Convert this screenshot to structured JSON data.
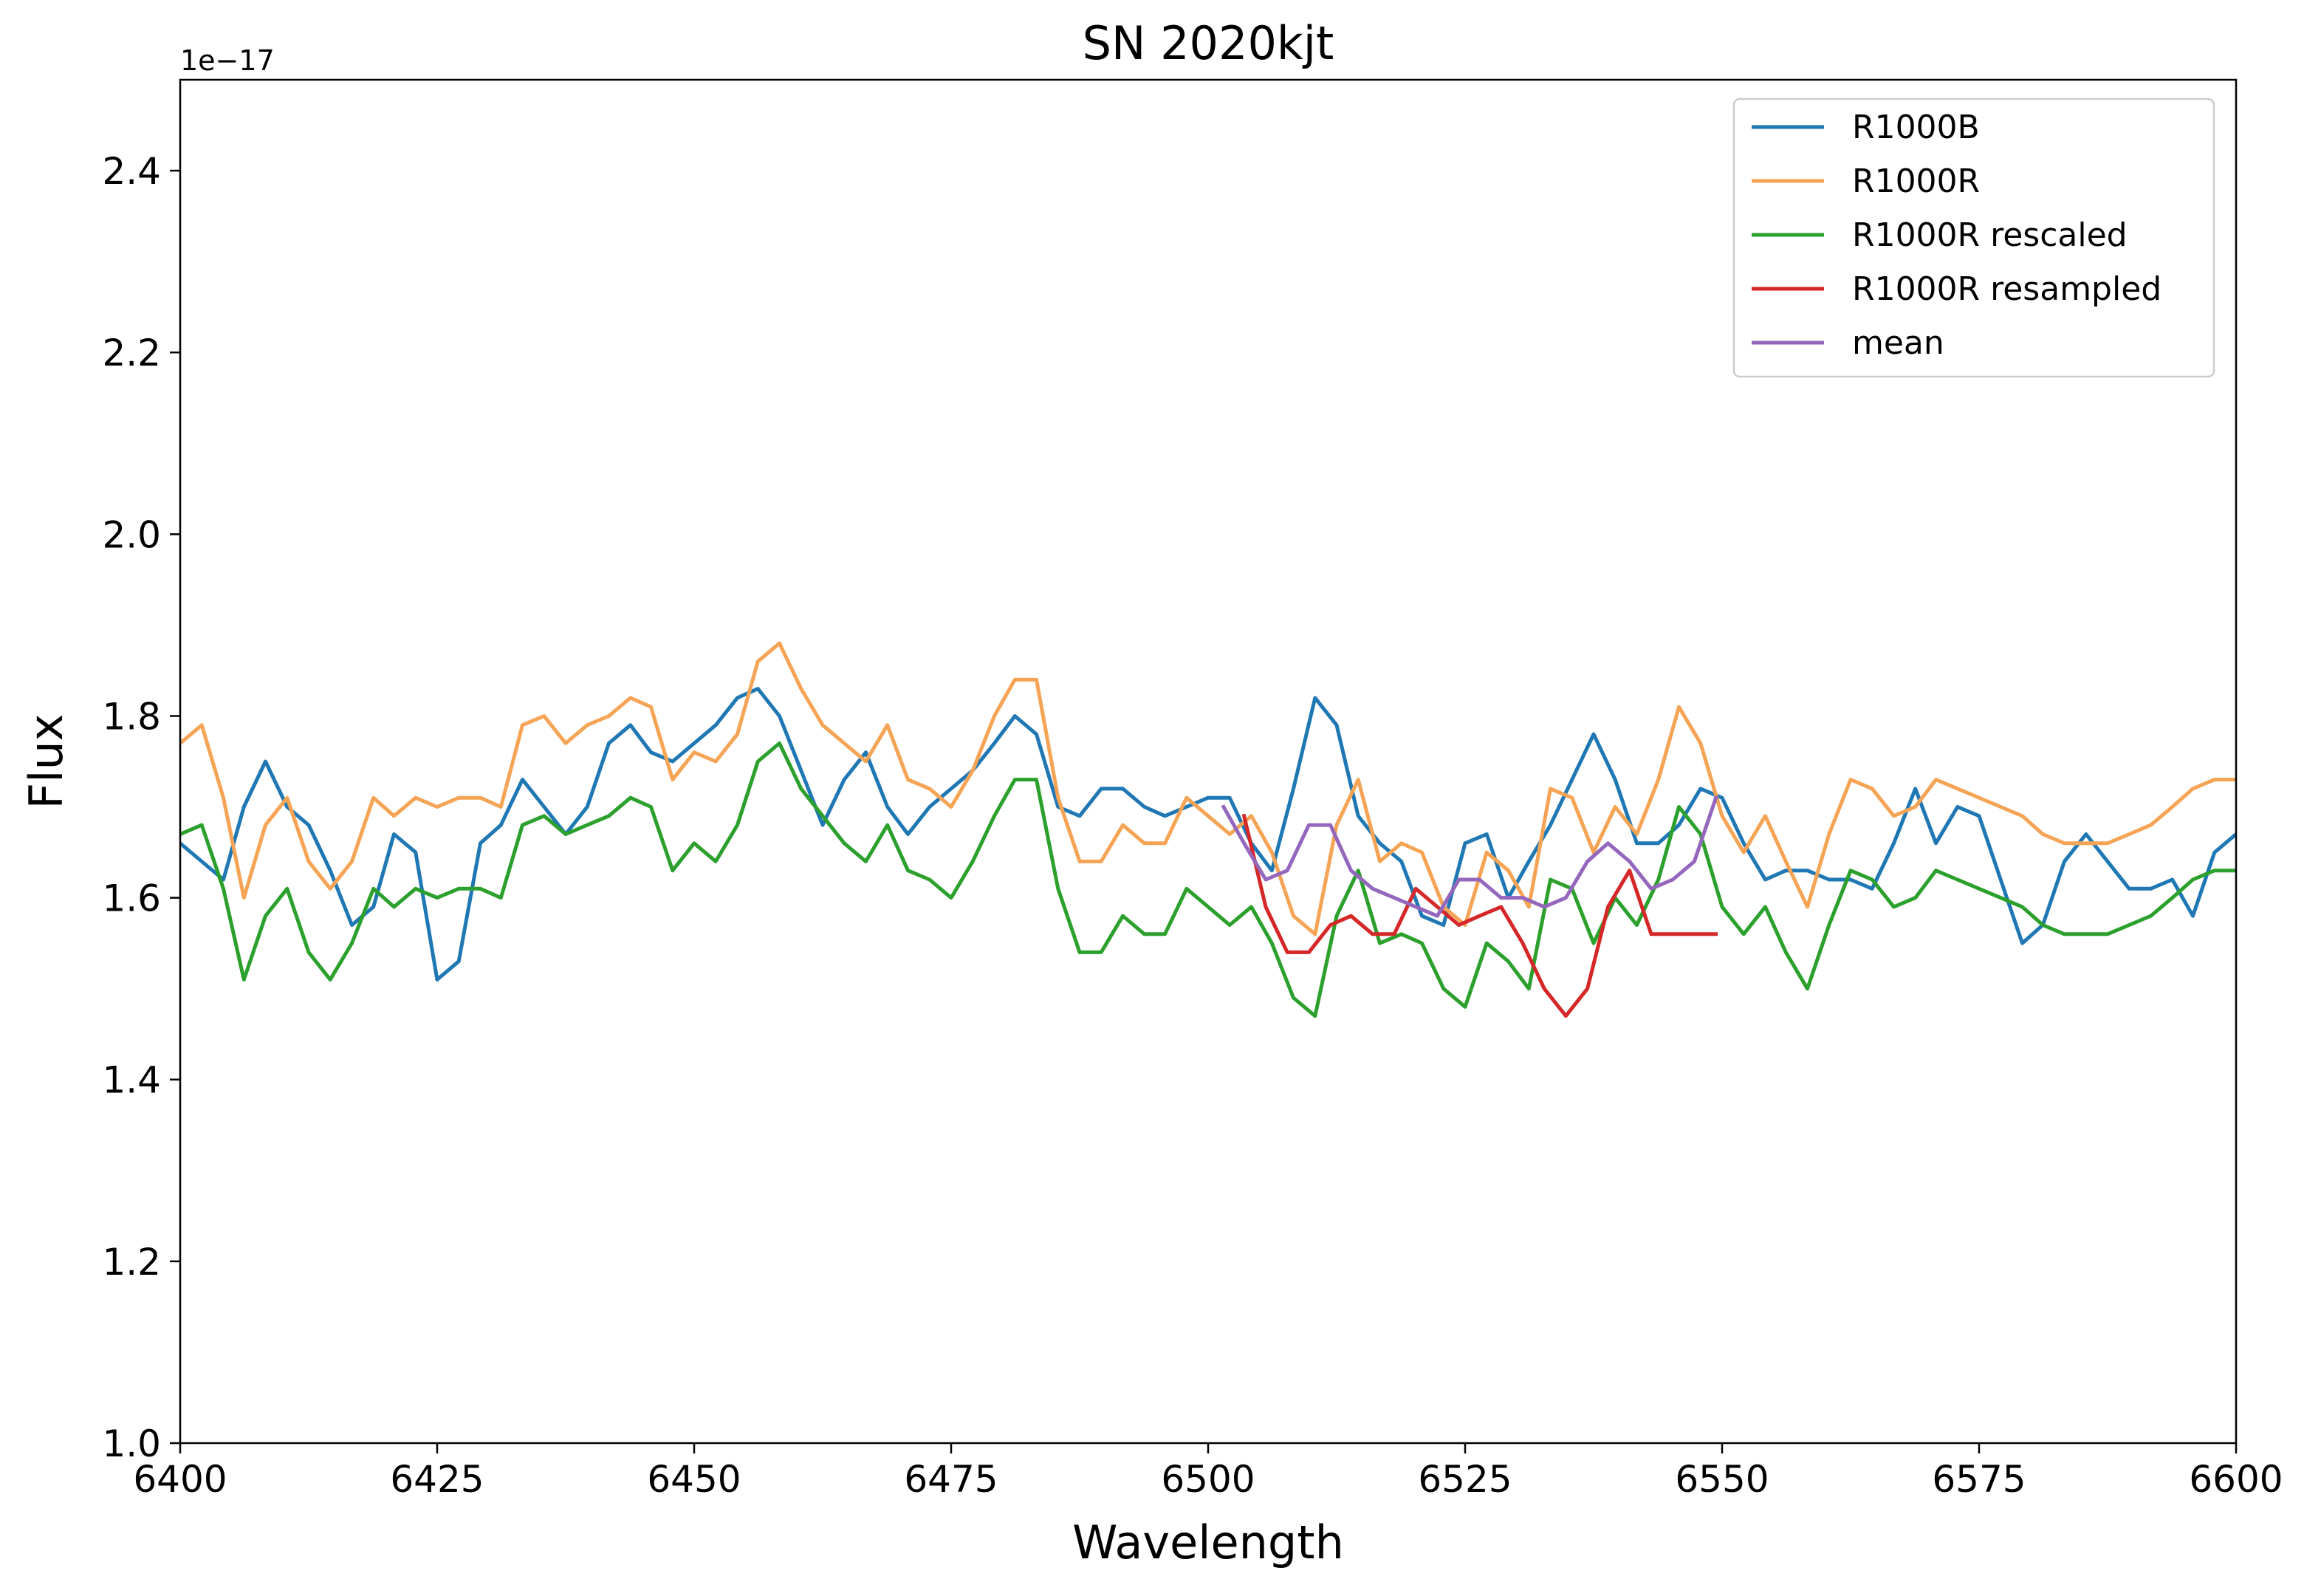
{
  "chart_data": {
    "type": "line",
    "title": "SN 2020kjt",
    "xlabel": "Wavelength",
    "ylabel": "Flux",
    "y_offset_text": "1e−17",
    "xlim": [
      6400,
      6600
    ],
    "ylim": [
      1.0,
      2.5
    ],
    "x_ticks": [
      6400,
      6425,
      6450,
      6475,
      6500,
      6525,
      6550,
      6575,
      6600
    ],
    "x_tick_labels": [
      "6400",
      "6425",
      "6450",
      "6475",
      "6500",
      "6525",
      "6550",
      "6575",
      "6600"
    ],
    "y_ticks": [
      1.0,
      1.2,
      1.4,
      1.6,
      1.8,
      2.0,
      2.2,
      2.4
    ],
    "y_tick_labels": [
      "1.0",
      "1.2",
      "1.4",
      "1.6",
      "1.8",
      "2.0",
      "2.2",
      "2.4"
    ],
    "grid": false,
    "legend": "top-right",
    "series": [
      {
        "name": "R1000B",
        "color": "#1f77b4",
        "x": [
          6400,
          6402.1,
          6404.2,
          6406.2,
          6408.3,
          6410.4,
          6412.5,
          6414.6,
          6416.7,
          6418.8,
          6420.8,
          6422.9,
          6425.0,
          6427.1,
          6429.2,
          6431.2,
          6433.3,
          6435.4,
          6437.5,
          6439.6,
          6441.7,
          6443.8,
          6445.8,
          6447.9,
          6450.0,
          6452.1,
          6454.2,
          6456.2,
          6458.3,
          6460.4,
          6462.5,
          6464.6,
          6466.7,
          6468.8,
          6470.8,
          6472.9,
          6475.0,
          6477.1,
          6479.2,
          6481.2,
          6483.3,
          6485.4,
          6487.5,
          6489.6,
          6491.7,
          6493.8,
          6495.8,
          6497.9,
          6500.0,
          6502.1,
          6504.2,
          6506.2,
          6508.3,
          6510.4,
          6512.5,
          6514.6,
          6516.7,
          6518.8,
          6520.8,
          6522.9,
          6525.0,
          6527.1,
          6529.2,
          6531.2,
          6533.3,
          6535.4,
          6537.5,
          6539.6,
          6541.7,
          6543.8,
          6545.8,
          6547.9,
          6550.0,
          6552.1,
          6554.2,
          6556.2,
          6558.3,
          6560.4,
          6562.5,
          6564.6,
          6566.7,
          6568.8,
          6570.8,
          6572.9,
          6575.0,
          6577.1,
          6579.2,
          6581.2,
          6583.3,
          6585.4,
          6587.5,
          6589.6,
          6591.7,
          6593.8,
          6595.8,
          6597.9,
          6600.0
        ],
        "values": [
          1.66,
          1.64,
          1.62,
          1.7,
          1.75,
          1.7,
          1.68,
          1.63,
          1.57,
          1.59,
          1.67,
          1.65,
          1.51,
          1.53,
          1.66,
          1.68,
          1.73,
          1.7,
          1.67,
          1.7,
          1.77,
          1.79,
          1.76,
          1.75,
          1.77,
          1.79,
          1.82,
          1.83,
          1.8,
          1.74,
          1.68,
          1.73,
          1.76,
          1.7,
          1.67,
          1.7,
          1.72,
          1.74,
          1.77,
          1.8,
          1.78,
          1.7,
          1.69,
          1.72,
          1.72,
          1.7,
          1.69,
          1.7,
          1.71,
          1.71,
          1.66,
          1.63,
          1.72,
          1.82,
          1.79,
          1.69,
          1.66,
          1.64,
          1.58,
          1.57,
          1.66,
          1.67,
          1.6,
          1.64,
          1.68,
          1.73,
          1.78,
          1.73,
          1.66,
          1.66,
          1.68,
          1.72,
          1.71,
          1.66,
          1.62,
          1.63,
          1.63,
          1.62,
          1.62,
          1.61,
          1.66,
          1.72,
          1.66,
          1.7,
          1.69,
          1.62,
          1.55,
          1.57,
          1.64,
          1.67,
          1.64,
          1.61,
          1.61,
          1.62,
          1.58,
          1.65,
          1.67
        ]
      },
      {
        "name": "R1000R",
        "color": "#f5a455",
        "x": [
          6400,
          6402.1,
          6404.2,
          6406.2,
          6408.3,
          6410.4,
          6412.5,
          6414.6,
          6416.7,
          6418.8,
          6420.8,
          6422.9,
          6425.0,
          6427.1,
          6429.2,
          6431.2,
          6433.3,
          6435.4,
          6437.5,
          6439.6,
          6441.7,
          6443.8,
          6445.8,
          6447.9,
          6450.0,
          6452.1,
          6454.2,
          6456.2,
          6458.3,
          6460.4,
          6462.5,
          6464.6,
          6466.7,
          6468.8,
          6470.8,
          6472.9,
          6475.0,
          6477.1,
          6479.2,
          6481.2,
          6483.3,
          6485.4,
          6487.5,
          6489.6,
          6491.7,
          6493.8,
          6495.8,
          6497.9,
          6500.0,
          6502.1,
          6504.2,
          6506.2,
          6508.3,
          6510.4,
          6512.5,
          6514.6,
          6516.7,
          6518.8,
          6520.8,
          6522.9,
          6525.0,
          6527.1,
          6529.2,
          6531.2,
          6533.3,
          6535.4,
          6537.5,
          6539.6,
          6541.7,
          6543.8,
          6545.8,
          6547.9,
          6550.0,
          6552.1,
          6554.2,
          6556.2,
          6558.3,
          6560.4,
          6562.5,
          6564.6,
          6566.7,
          6568.8,
          6570.8,
          6572.9,
          6575.0,
          6577.1,
          6579.2,
          6581.2,
          6583.3,
          6585.4,
          6587.5,
          6589.6,
          6591.7,
          6593.8,
          6595.8,
          6597.9,
          6600.0
        ],
        "values": [
          1.77,
          1.79,
          1.71,
          1.6,
          1.68,
          1.71,
          1.64,
          1.61,
          1.64,
          1.71,
          1.69,
          1.71,
          1.7,
          1.71,
          1.71,
          1.7,
          1.79,
          1.8,
          1.77,
          1.79,
          1.8,
          1.82,
          1.81,
          1.73,
          1.76,
          1.75,
          1.78,
          1.86,
          1.88,
          1.83,
          1.79,
          1.77,
          1.75,
          1.79,
          1.73,
          1.72,
          1.7,
          1.74,
          1.8,
          1.84,
          1.84,
          1.71,
          1.64,
          1.64,
          1.68,
          1.66,
          1.66,
          1.71,
          1.69,
          1.67,
          1.69,
          1.65,
          1.58,
          1.56,
          1.68,
          1.73,
          1.64,
          1.66,
          1.65,
          1.59,
          1.57,
          1.65,
          1.63,
          1.59,
          1.72,
          1.71,
          1.65,
          1.7,
          1.67,
          1.73,
          1.81,
          1.77,
          1.69,
          1.65,
          1.69,
          1.64,
          1.59,
          1.67,
          1.73,
          1.72,
          1.69,
          1.7,
          1.73,
          1.72,
          1.71,
          1.7,
          1.69,
          1.67,
          1.66,
          1.66,
          1.66,
          1.67,
          1.68,
          1.7,
          1.72,
          1.73,
          1.73
        ]
      },
      {
        "name": "R1000R rescaled",
        "color": "#2ca02c",
        "x": [
          6400,
          6402.1,
          6404.2,
          6406.2,
          6408.3,
          6410.4,
          6412.5,
          6414.6,
          6416.7,
          6418.8,
          6420.8,
          6422.9,
          6425.0,
          6427.1,
          6429.2,
          6431.2,
          6433.3,
          6435.4,
          6437.5,
          6439.6,
          6441.7,
          6443.8,
          6445.8,
          6447.9,
          6450.0,
          6452.1,
          6454.2,
          6456.2,
          6458.3,
          6460.4,
          6462.5,
          6464.6,
          6466.7,
          6468.8,
          6470.8,
          6472.9,
          6475.0,
          6477.1,
          6479.2,
          6481.2,
          6483.3,
          6485.4,
          6487.5,
          6489.6,
          6491.7,
          6493.8,
          6495.8,
          6497.9,
          6500.0,
          6502.1,
          6504.2,
          6506.2,
          6508.3,
          6510.4,
          6512.5,
          6514.6,
          6516.7,
          6518.8,
          6520.8,
          6522.9,
          6525.0,
          6527.1,
          6529.2,
          6531.2,
          6533.3,
          6535.4,
          6537.5,
          6539.6,
          6541.7,
          6543.8,
          6545.8,
          6547.9,
          6550.0,
          6552.1,
          6554.2,
          6556.2,
          6558.3,
          6560.4,
          6562.5,
          6564.6,
          6566.7,
          6568.8,
          6570.8,
          6572.9,
          6575.0,
          6577.1,
          6579.2,
          6581.2,
          6583.3,
          6585.4,
          6587.5,
          6589.6,
          6591.7,
          6593.8,
          6595.8,
          6597.9,
          6600.0
        ],
        "values": [
          1.67,
          1.68,
          1.61,
          1.51,
          1.58,
          1.61,
          1.54,
          1.51,
          1.55,
          1.61,
          1.59,
          1.61,
          1.6,
          1.61,
          1.61,
          1.6,
          1.68,
          1.69,
          1.67,
          1.68,
          1.69,
          1.71,
          1.7,
          1.63,
          1.66,
          1.64,
          1.68,
          1.75,
          1.77,
          1.72,
          1.69,
          1.66,
          1.64,
          1.68,
          1.63,
          1.62,
          1.6,
          1.64,
          1.69,
          1.73,
          1.73,
          1.61,
          1.54,
          1.54,
          1.58,
          1.56,
          1.56,
          1.61,
          1.59,
          1.57,
          1.59,
          1.55,
          1.49,
          1.47,
          1.58,
          1.63,
          1.55,
          1.56,
          1.55,
          1.5,
          1.48,
          1.55,
          1.53,
          1.5,
          1.62,
          1.61,
          1.55,
          1.6,
          1.57,
          1.62,
          1.7,
          1.67,
          1.59,
          1.56,
          1.59,
          1.54,
          1.5,
          1.57,
          1.63,
          1.62,
          1.59,
          1.6,
          1.63,
          1.62,
          1.61,
          1.6,
          1.59,
          1.57,
          1.56,
          1.56,
          1.56,
          1.57,
          1.58,
          1.6,
          1.62,
          1.63,
          1.63
        ]
      },
      {
        "name": "R1000R resampled",
        "color": "#d62728",
        "x": [
          6503.5,
          6505.6,
          6507.7,
          6509.8,
          6511.9,
          6513.9,
          6516.0,
          6518.1,
          6520.2,
          6522.3,
          6524.4,
          6526.4,
          6528.5,
          6530.6,
          6532.7,
          6534.8,
          6536.9,
          6538.9,
          6541.0,
          6543.1,
          6545.2,
          6547.3,
          6549.4
        ],
        "values": [
          1.69,
          1.59,
          1.54,
          1.54,
          1.57,
          1.58,
          1.56,
          1.56,
          1.61,
          1.59,
          1.57,
          1.58,
          1.59,
          1.55,
          1.5,
          1.47,
          1.5,
          1.59,
          1.63,
          1.56,
          1.56,
          1.56,
          1.56
        ]
      },
      {
        "name": "mean",
        "color": "#9467bd",
        "x": [
          6501.5,
          6503.5,
          6505.6,
          6507.7,
          6509.8,
          6511.9,
          6513.9,
          6516.0,
          6518.1,
          6520.2,
          6522.3,
          6524.4,
          6526.4,
          6528.5,
          6530.6,
          6532.7,
          6534.8,
          6536.9,
          6538.9,
          6541.0,
          6543.1,
          6545.2,
          6547.3,
          6549.4
        ],
        "values": [
          1.7,
          1.66,
          1.62,
          1.63,
          1.68,
          1.68,
          1.63,
          1.61,
          1.6,
          1.59,
          1.58,
          1.62,
          1.62,
          1.6,
          1.6,
          1.59,
          1.6,
          1.64,
          1.66,
          1.64,
          1.61,
          1.62,
          1.64,
          1.71
        ]
      }
    ]
  }
}
